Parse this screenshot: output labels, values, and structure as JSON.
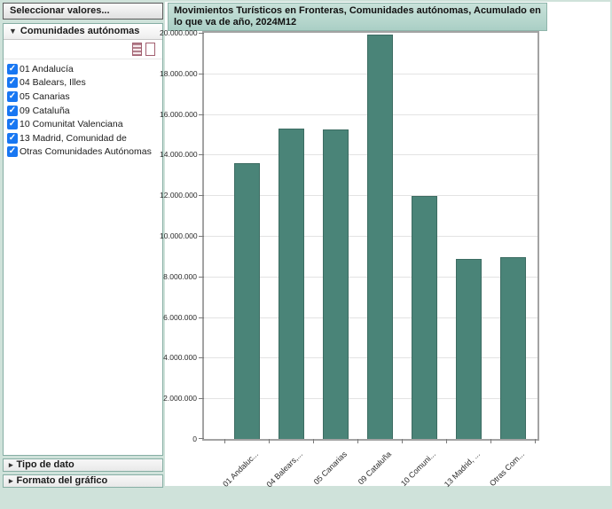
{
  "sidebar": {
    "select_values_label": "Seleccionar valores...",
    "communities_panel": {
      "label": "Comunidades autónomas",
      "expanded": true,
      "items": [
        {
          "label": "01 Andalucía",
          "checked": true
        },
        {
          "label": "04 Balears, Illes",
          "checked": true
        },
        {
          "label": "05 Canarias",
          "checked": true
        },
        {
          "label": "09 Cataluña",
          "checked": true
        },
        {
          "label": "10 Comunitat Valenciana",
          "checked": true
        },
        {
          "label": "13 Madrid, Comunidad de",
          "checked": true
        },
        {
          "label": "Otras Comunidades Autónomas",
          "checked": true
        }
      ]
    },
    "collapsed_panels": [
      {
        "label": "Tipo de dato"
      },
      {
        "label": "Formato del gráfico"
      }
    ]
  },
  "chart_data": {
    "type": "bar",
    "title": "Movimientos Turísticos en Fronteras, Comunidades autónomas, Acumulado en lo que va de año, 2024M12",
    "categories": [
      "01 Andaluc...",
      "04 Balears,...",
      "05 Canarias",
      "09 Cataluña",
      "10 Comuni...",
      "13 Madrid, ...",
      "Otras Com..."
    ],
    "values": [
      13600000,
      15300000,
      15250000,
      19900000,
      11950000,
      8850000,
      8950000
    ],
    "xlabel": "",
    "ylabel": "",
    "ylim": [
      0,
      20000000
    ],
    "ytick_step": 2000000,
    "y_tick_labels": [
      "0",
      "2.000.000",
      "4.000.000",
      "6.000.000",
      "8.000.000",
      "10.000.000",
      "12.000.000",
      "14.000.000",
      "16.000.000",
      "18.000.000",
      "20.000.000"
    ],
    "bar_color": "#4a8478",
    "grid": true,
    "legend": false
  },
  "colors": {
    "page_background": "#cfe2da",
    "panel_border": "#86aea4",
    "title_background": "#b9d8cf",
    "bar": "#4a8478",
    "checkbox_blue": "#1877f2",
    "icon_border": "#a25f70"
  },
  "glyphs": {
    "caret_down": "▼",
    "caret_right": "▸",
    "check": "✓"
  }
}
